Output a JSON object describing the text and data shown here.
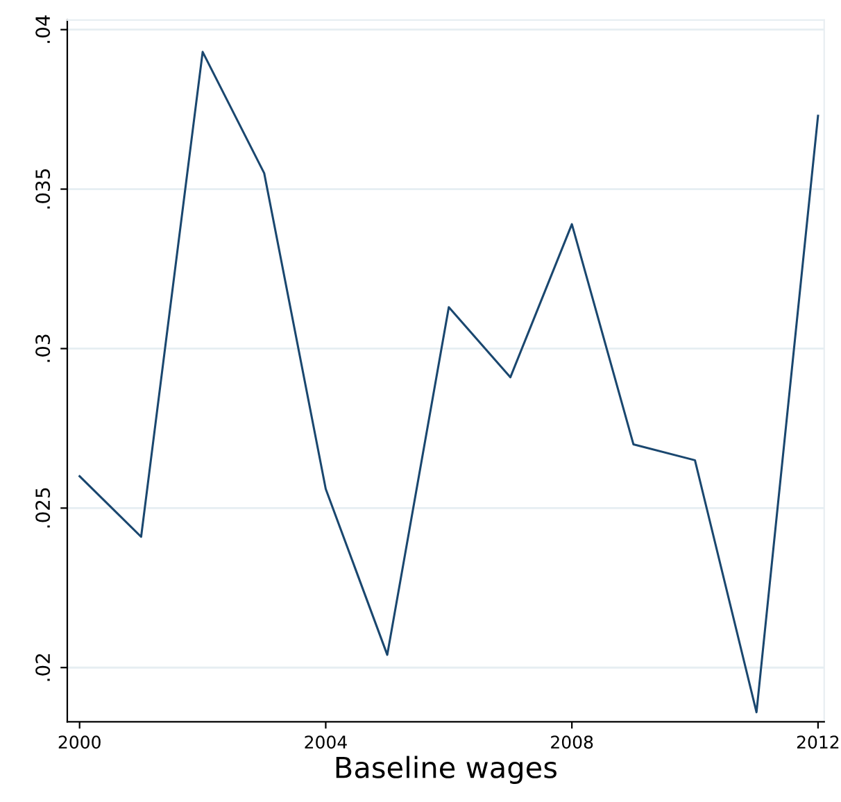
{
  "chart_data": {
    "type": "line",
    "xlabel": "Baseline wages",
    "x": [
      2000,
      2001,
      2002,
      2003,
      2004,
      2005,
      2006,
      2007,
      2008,
      2009,
      2010,
      2011,
      2012
    ],
    "series": [
      {
        "color": "#1a476f",
        "values": [
          0.026,
          0.0241,
          0.0393,
          0.0355,
          0.0256,
          0.0204,
          0.0313,
          0.0291,
          0.0339,
          0.027,
          0.0265,
          0.0186,
          0.0373
        ]
      }
    ],
    "xlim": [
      1999.8,
      2012.1
    ],
    "ylim": [
      0.0183,
      0.0403
    ],
    "xticks": [
      2000,
      2004,
      2008,
      2012
    ],
    "yticks": [
      {
        "value": 0.02,
        "label": ".02"
      },
      {
        "value": 0.025,
        "label": ".025"
      },
      {
        "value": 0.03,
        "label": ".03"
      },
      {
        "value": 0.035,
        "label": ".035"
      },
      {
        "value": 0.04,
        "label": ".04"
      }
    ],
    "grid": "y"
  }
}
